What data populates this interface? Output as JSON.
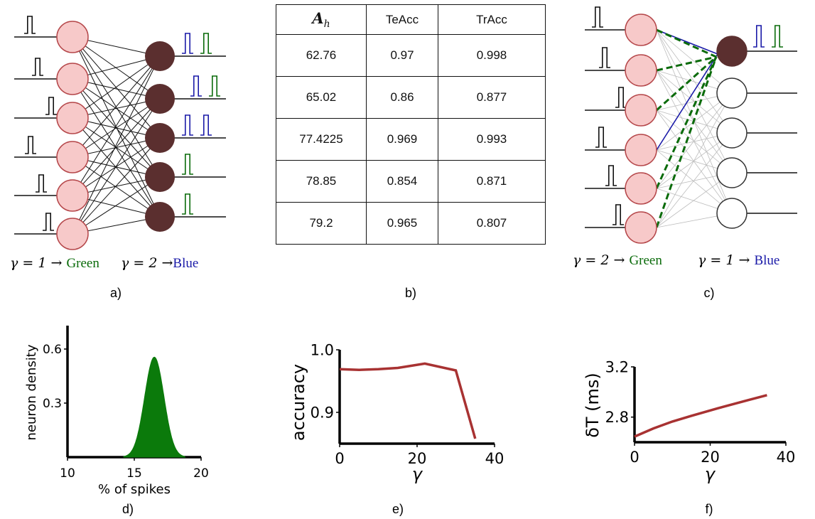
{
  "panels": {
    "a": {
      "label": "a)",
      "legend_left": {
        "gamma": "γ = 1 →",
        "color_word": "Green"
      },
      "legend_right": {
        "gamma": "γ = 2 →",
        "color_word": "Blue"
      }
    },
    "b": {
      "label": "b)",
      "table": {
        "headers": {
          "col1_symbol": "A",
          "col1_sub": "h",
          "col2": "TeAcc",
          "col3": "TrAcc"
        },
        "rows": [
          [
            "62.76",
            "0.97",
            "0.998"
          ],
          [
            "65.02",
            "0.86",
            "0.877"
          ],
          [
            "77.4225",
            "0.969",
            "0.993"
          ],
          [
            "78.85",
            "0.854",
            "0.871"
          ],
          [
            "79.2",
            "0.965",
            "0.807"
          ]
        ]
      }
    },
    "c": {
      "label": "c)",
      "legend_left": {
        "gamma": "γ = 2 →",
        "color_word": "Green"
      },
      "legend_right": {
        "gamma": "γ = 1 →",
        "color_word": "Blue"
      }
    },
    "d": {
      "label": "d)"
    },
    "e": {
      "label": "e)"
    },
    "f": {
      "label": "f)"
    }
  },
  "colors": {
    "input_fill": "#f7c9c9",
    "input_stroke": "#b5474a",
    "output_fill": "#5b2f2f",
    "green": "#0a6b0a",
    "blue": "#1a1aa8",
    "curve": "#a83232",
    "density": "#0b7a0b"
  },
  "chart_data": [
    {
      "type": "area",
      "panel": "d",
      "xlabel": "% of spikes",
      "ylabel": "neuron density",
      "xlim": [
        10,
        20
      ],
      "ylim": [
        0,
        0.73
      ],
      "xticks": [
        "10",
        "15",
        "20"
      ],
      "yticks": [
        "0.3",
        "0.6"
      ],
      "distribution": {
        "mean": 16.5,
        "sd": 0.72,
        "peak": 0.555
      }
    },
    {
      "type": "line",
      "panel": "e",
      "xlabel": "γ",
      "ylabel": "accuracy",
      "xlim": [
        0,
        40
      ],
      "ylim": [
        0.85,
        1.0
      ],
      "xticks": [
        "0",
        "20",
        "40"
      ],
      "yticks": [
        "0.9",
        "1.0"
      ],
      "series": [
        {
          "x": [
            0,
            5,
            10,
            15,
            22,
            30,
            35
          ],
          "y": [
            0.969,
            0.968,
            0.969,
            0.971,
            0.978,
            0.967,
            0.858
          ]
        }
      ]
    },
    {
      "type": "line",
      "panel": "f",
      "xlabel": "γ",
      "ylabel": "δT (ms)",
      "xlim": [
        0,
        40
      ],
      "ylim": [
        2.6,
        3.2
      ],
      "xticks": [
        "0",
        "20",
        "40"
      ],
      "yticks": [
        "2.8",
        "3.2"
      ],
      "series": [
        {
          "x": [
            0,
            5,
            10,
            15,
            22,
            30,
            35
          ],
          "y": [
            2.645,
            2.71,
            2.765,
            2.81,
            2.87,
            2.935,
            2.975
          ]
        }
      ]
    }
  ]
}
